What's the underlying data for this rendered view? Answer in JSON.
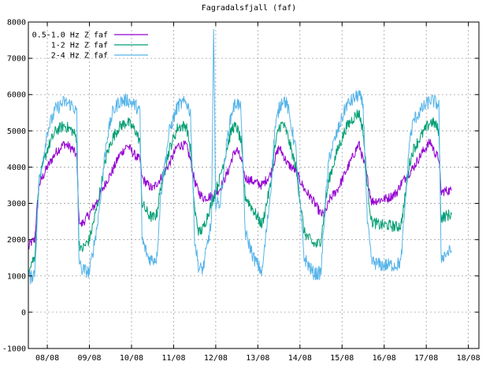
{
  "chart_data": {
    "type": "line",
    "title": "Fagradalsfjall (faf)",
    "xlabel": "",
    "ylabel": "",
    "xlim": [
      7.55,
      18.25
    ],
    "ylim": [
      -1000,
      8000
    ],
    "grid": true,
    "legend_position": "top-left",
    "y_ticks": [
      "-1000",
      "0",
      "1000",
      "2000",
      "3000",
      "4000",
      "5000",
      "6000",
      "7000",
      "8000"
    ],
    "x_ticks": [
      {
        "x": 8,
        "label": "08/08"
      },
      {
        "x": 9,
        "label": "09/08"
      },
      {
        "x": 10,
        "label": "10/08"
      },
      {
        "x": 11,
        "label": "11/08"
      },
      {
        "x": 12,
        "label": "12/08"
      },
      {
        "x": 13,
        "label": "13/08"
      },
      {
        "x": 14,
        "label": "14/08"
      },
      {
        "x": 15,
        "label": "15/08"
      },
      {
        "x": 16,
        "label": "16/08"
      },
      {
        "x": 17,
        "label": "17/08"
      },
      {
        "x": 18,
        "label": "18/08"
      }
    ],
    "series": [
      {
        "name": "0.5-1.0 Hz Z faf",
        "color": "#9400d3",
        "x": [
          7.55,
          7.6,
          7.7,
          7.8,
          8.0,
          8.2,
          8.4,
          8.6,
          8.7,
          8.75,
          8.8,
          9.0,
          9.2,
          9.4,
          9.55,
          9.7,
          9.9,
          10.1,
          10.2,
          10.25,
          10.4,
          10.5,
          10.6,
          10.7,
          10.9,
          11.1,
          11.3,
          11.4,
          11.5,
          11.6,
          11.7,
          11.9,
          12.1,
          12.3,
          12.4,
          12.5,
          12.6,
          12.7,
          12.9,
          13.1,
          13.3,
          13.4,
          13.5,
          13.6,
          13.7,
          13.9,
          14.1,
          14.3,
          14.4,
          14.5,
          14.6,
          14.7,
          14.9,
          15.1,
          15.3,
          15.4,
          15.5,
          15.6,
          15.7,
          15.9,
          16.1,
          16.3,
          16.4,
          16.5,
          16.6,
          16.7,
          16.9,
          17.1,
          17.2,
          17.3,
          17.35,
          17.45,
          17.6
        ],
        "values": [
          1750,
          1900,
          2000,
          3500,
          4000,
          4400,
          4650,
          4500,
          4300,
          2600,
          2400,
          2700,
          3100,
          3600,
          3900,
          4300,
          4600,
          4300,
          4200,
          3700,
          3500,
          3400,
          3550,
          3700,
          4100,
          4600,
          4600,
          4200,
          3600,
          3300,
          3150,
          3200,
          3400,
          3900,
          4300,
          4500,
          4200,
          3700,
          3600,
          3500,
          3800,
          4200,
          4550,
          4350,
          4100,
          3900,
          3400,
          3100,
          2900,
          2700,
          2700,
          3100,
          3400,
          3900,
          4400,
          4650,
          4200,
          3700,
          3050,
          3100,
          3150,
          3300,
          3550,
          3700,
          3850,
          4000,
          4400,
          4700,
          4400,
          4250,
          3300,
          3350,
          3350
        ]
      },
      {
        "name": "1-2 Hz Z faf",
        "color": "#009e73",
        "x": [
          7.55,
          7.6,
          7.7,
          7.8,
          8.0,
          8.2,
          8.4,
          8.6,
          8.7,
          8.75,
          8.8,
          9.0,
          9.2,
          9.4,
          9.55,
          9.7,
          9.9,
          10.1,
          10.2,
          10.25,
          10.4,
          10.5,
          10.6,
          10.7,
          10.9,
          11.1,
          11.3,
          11.4,
          11.5,
          11.6,
          11.7,
          11.9,
          12.1,
          12.3,
          12.4,
          12.5,
          12.6,
          12.7,
          12.9,
          13.1,
          13.3,
          13.4,
          13.5,
          13.6,
          13.7,
          13.9,
          14.1,
          14.3,
          14.4,
          14.5,
          14.6,
          14.7,
          14.9,
          15.1,
          15.3,
          15.4,
          15.5,
          15.6,
          15.7,
          15.9,
          16.1,
          16.3,
          16.4,
          16.5,
          16.6,
          16.7,
          16.9,
          17.1,
          17.2,
          17.3,
          17.35,
          17.45,
          17.6
        ],
        "values": [
          1200,
          1350,
          1500,
          3600,
          4500,
          5000,
          5150,
          5000,
          4800,
          2000,
          1700,
          2000,
          3000,
          4300,
          4800,
          5100,
          5250,
          5000,
          4700,
          3000,
          2700,
          2600,
          2700,
          3500,
          4500,
          5100,
          5150,
          4500,
          2800,
          2200,
          2300,
          3000,
          3700,
          4700,
          5100,
          5100,
          4700,
          3200,
          2800,
          2400,
          3500,
          4500,
          5100,
          5200,
          4900,
          4000,
          2200,
          1900,
          1850,
          2000,
          3000,
          3700,
          4500,
          5100,
          5400,
          5500,
          5000,
          3500,
          2500,
          2400,
          2400,
          2350,
          2400,
          3200,
          4100,
          4500,
          4900,
          5250,
          5200,
          5000,
          2600,
          2650,
          2700
        ]
      },
      {
        "name": "2-4 Hz Z faf",
        "color": "#56b4e9",
        "x": [
          7.55,
          7.6,
          7.7,
          7.8,
          8.0,
          8.2,
          8.4,
          8.6,
          8.7,
          8.75,
          8.8,
          9.0,
          9.2,
          9.4,
          9.55,
          9.7,
          9.9,
          10.1,
          10.2,
          10.25,
          10.4,
          10.5,
          10.6,
          10.7,
          10.9,
          11.1,
          11.3,
          11.4,
          11.5,
          11.6,
          11.7,
          11.9,
          11.95,
          12.0,
          12.1,
          12.3,
          12.4,
          12.5,
          12.6,
          12.7,
          12.9,
          13.1,
          13.3,
          13.4,
          13.5,
          13.6,
          13.7,
          13.9,
          14.1,
          14.3,
          14.4,
          14.5,
          14.6,
          14.7,
          14.9,
          15.1,
          15.3,
          15.4,
          15.5,
          15.6,
          15.7,
          15.9,
          16.1,
          16.3,
          16.4,
          16.5,
          16.6,
          16.7,
          16.9,
          17.1,
          17.2,
          17.3,
          17.35,
          17.45,
          17.6
        ],
        "values": [
          1000,
          950,
          1100,
          3500,
          5000,
          5600,
          5800,
          5700,
          5500,
          1500,
          1200,
          1100,
          2500,
          4700,
          5500,
          5800,
          5850,
          5700,
          5500,
          2000,
          1500,
          1450,
          1500,
          3300,
          5000,
          5700,
          5800,
          5500,
          2000,
          1200,
          1200,
          2500,
          7700,
          3000,
          3000,
          5000,
          5600,
          5800,
          5600,
          2200,
          1500,
          1100,
          3300,
          5000,
          5600,
          5900,
          5700,
          4500,
          1500,
          1100,
          1050,
          1100,
          3000,
          4300,
          5000,
          5700,
          5900,
          6000,
          5700,
          2500,
          1400,
          1300,
          1300,
          1300,
          1400,
          3000,
          4700,
          5300,
          5600,
          5850,
          5800,
          5700,
          1500,
          1600,
          1700
        ]
      }
    ]
  }
}
